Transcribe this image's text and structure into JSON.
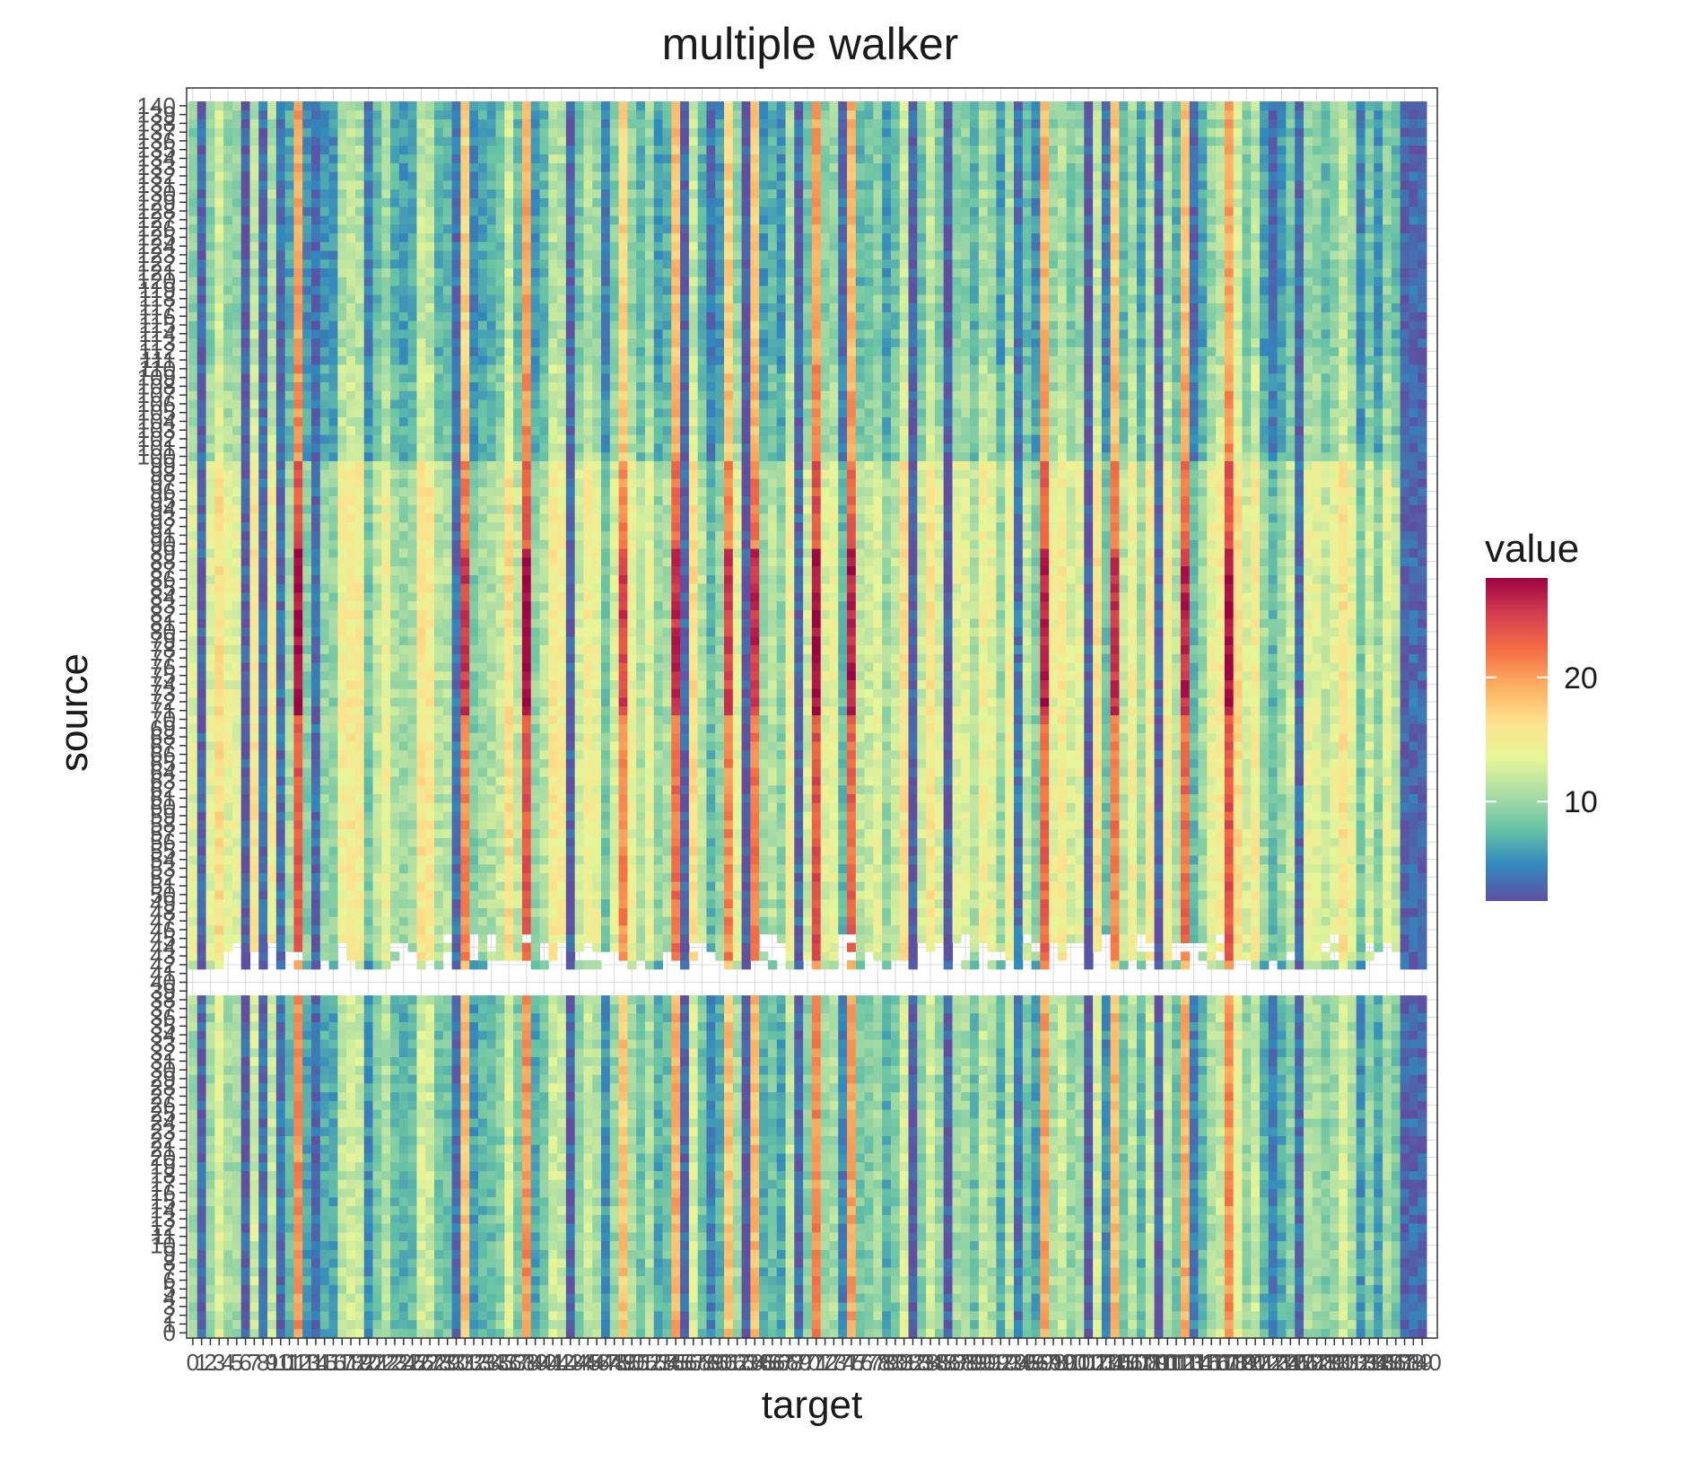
{
  "chart_data": {
    "type": "heatmap",
    "title": "multiple walker",
    "xlabel": "target",
    "ylabel": "source",
    "x_categories": "integers 0..140 (141 target columns; tick labels overlap heavily)",
    "y_categories": "integers 0..140 (141 source rows; tick labels overlap heavily)",
    "x_tick_labels_readable": [
      "0",
      "1",
      "3",
      "5",
      "7",
      "9",
      "10",
      "140"
    ],
    "y_tick_labels_readable": [
      "0",
      "5",
      "10",
      "140"
    ],
    "xlim": [
      0,
      140
    ],
    "ylim": [
      0,
      140
    ],
    "value_range": [
      2,
      28
    ],
    "legend": {
      "title": "value",
      "position": "right",
      "ticks": [
        10,
        20
      ],
      "colormap": "Spectral (reversed): blue = low, red = high",
      "colors": [
        "#5E4FA2",
        "#3288BD",
        "#66C2A5",
        "#ABDDA4",
        "#E6F598",
        "#FEE08B",
        "#FDAE61",
        "#F46D43",
        "#D53E4F",
        "#9E0142"
      ]
    },
    "missing_row_band": [
      39,
      41
    ],
    "notes_on_values": "Values vary mostly by target column (vertical stripes); high-value (orange/red, ~20-27) columns near targets 12, 31, 38, 49, 55, 61, 64, 71, 75, 97, 105, 113, 118; low-value (dark purple/blue, ~2-5) columns near targets 1, 6, 8, 10, 14, 30, 43, 56, 63, 69, 82, 86, 94, 102, 110, 126, 138-140; a blank (missing) horizontal band around source 39-41 with ragged missing cells just above it; middle source rows (~42-100) generally brighter (yellow-green) than the bottom and top rows."
  },
  "grid_color": "#d9d9d9",
  "panel_border_color": "#333333"
}
